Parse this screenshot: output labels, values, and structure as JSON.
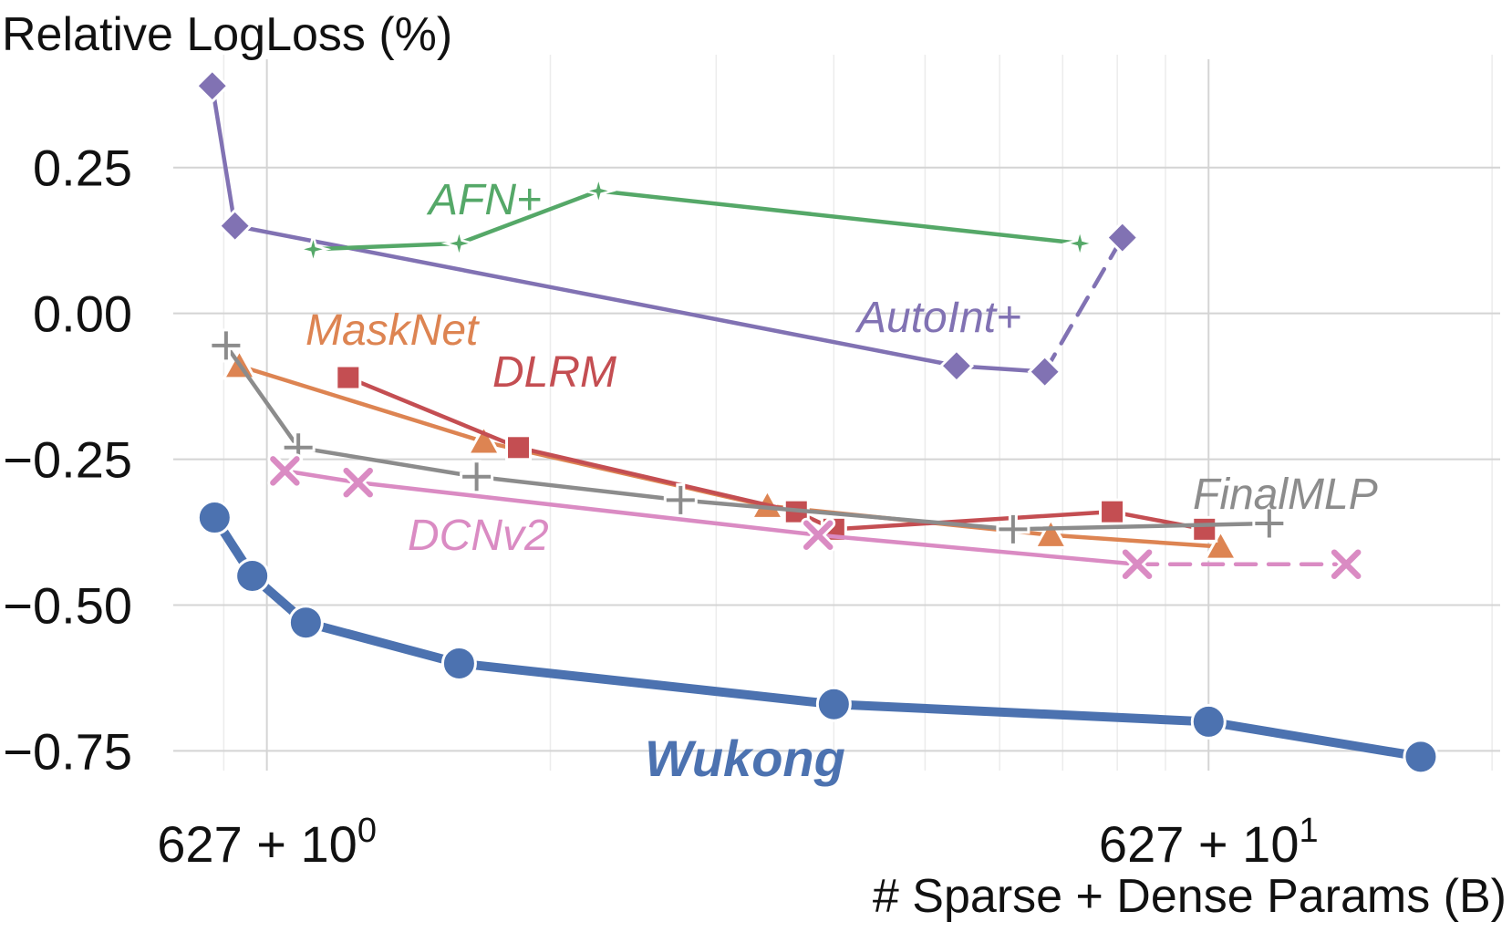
{
  "chart_data": {
    "type": "line",
    "title": "",
    "ylabel": "Relative LogLoss (%)",
    "xlabel": "# Sparse + Dense Params (B)",
    "xscale": "log",
    "xlim": [
      0.86,
      20.4
    ],
    "ylim": [
      -0.815,
      0.42
    ],
    "yticks": [
      {
        "value": 0.25,
        "label": "0.25"
      },
      {
        "value": 0.0,
        "label": "0.00"
      },
      {
        "value": -0.25,
        "label": "−0.25"
      },
      {
        "value": -0.5,
        "label": "−0.50"
      },
      {
        "value": -0.75,
        "label": "−0.75"
      }
    ],
    "xticks": [
      {
        "value": 1,
        "label": "627 + 10",
        "exp": "0"
      },
      {
        "value": 10,
        "label": "627 + 10",
        "exp": "1"
      }
    ],
    "grid": true,
    "series": [
      {
        "name": "AutoInt+",
        "label": "AutoInt+",
        "color": "#8172b3",
        "marker": "diamond",
        "x": [
          0.875,
          0.925,
          5.4,
          6.7,
          8.1
        ],
        "y": [
          0.39,
          0.15,
          -0.09,
          -0.1,
          0.13
        ],
        "dashed_from": 3
      },
      {
        "name": "AFN+",
        "label": "AFN+",
        "color": "#55a868",
        "marker": "star",
        "x": [
          1.12,
          1.6,
          2.25,
          7.3
        ],
        "y": [
          0.11,
          0.12,
          0.21,
          0.12
        ],
        "dashed_from": null
      },
      {
        "name": "MaskNet",
        "label": "MaskNet",
        "color": "#dd8452",
        "marker": "triangle",
        "x": [
          0.935,
          1.7,
          3.4,
          6.8,
          10.3
        ],
        "y": [
          -0.09,
          -0.22,
          -0.33,
          -0.38,
          -0.4
        ],
        "dashed_from": null
      },
      {
        "name": "DLRM",
        "label": "DLRM",
        "color": "#c44e52",
        "marker": "square",
        "x": [
          1.22,
          1.85,
          3.65,
          4.0,
          7.9,
          9.9
        ],
        "y": [
          -0.11,
          -0.23,
          -0.34,
          -0.37,
          -0.34,
          -0.37
        ],
        "dashed_from": null
      },
      {
        "name": "FinalMLP",
        "label": "FinalMLP",
        "color": "#8c8c8c",
        "marker": "plus",
        "x": [
          0.905,
          1.08,
          1.67,
          2.75,
          6.2,
          11.6
        ],
        "y": [
          -0.055,
          -0.23,
          -0.28,
          -0.32,
          -0.37,
          -0.36
        ],
        "dashed_from": null
      },
      {
        "name": "DCNv2",
        "label": "DCNv2",
        "color": "#da8bc3",
        "marker": "x",
        "x": [
          1.045,
          1.25,
          3.85,
          8.4,
          14.0
        ],
        "y": [
          -0.27,
          -0.29,
          -0.38,
          -0.43,
          -0.43
        ],
        "dashed_from": 3
      },
      {
        "name": "Wukong",
        "label": "Wukong",
        "color": "#4c72b0",
        "marker": "circle",
        "x": [
          0.88,
          0.965,
          1.1,
          1.6,
          4.0,
          10.0,
          16.8
        ],
        "y": [
          -0.35,
          -0.45,
          -0.53,
          -0.6,
          -0.67,
          -0.7,
          -0.76
        ],
        "dashed_from": null
      }
    ]
  }
}
